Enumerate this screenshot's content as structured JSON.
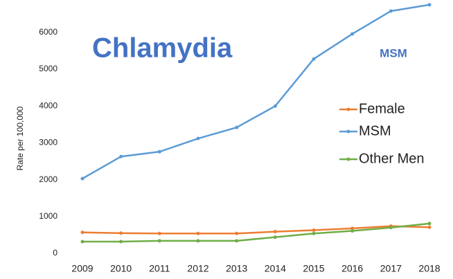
{
  "chart_data": {
    "type": "line",
    "title": "Chlamydia",
    "annotation": "MSM",
    "y_label": "Rate per 100,000",
    "categories": [
      "2009",
      "2010",
      "2011",
      "2012",
      "2013",
      "2014",
      "2015",
      "2016",
      "2017",
      "2018"
    ],
    "series": [
      {
        "name": "Female",
        "color": "#ed7d31",
        "values": [
          570,
          550,
          540,
          540,
          540,
          590,
          630,
          680,
          740,
          710
        ]
      },
      {
        "name": "MSM",
        "color": "#5b9bd5",
        "values": [
          2030,
          2630,
          2760,
          3120,
          3420,
          4000,
          5280,
          5960,
          6580,
          6750
        ]
      },
      {
        "name": "Other Men",
        "color": "#70ad47",
        "values": [
          320,
          320,
          340,
          340,
          340,
          440,
          540,
          610,
          700,
          810
        ]
      }
    ],
    "ylim": [
      0,
      6880
    ],
    "yticks": [
      0,
      1000,
      2000,
      3000,
      4000,
      5000,
      6000
    ],
    "grid": false,
    "legend": "right"
  }
}
